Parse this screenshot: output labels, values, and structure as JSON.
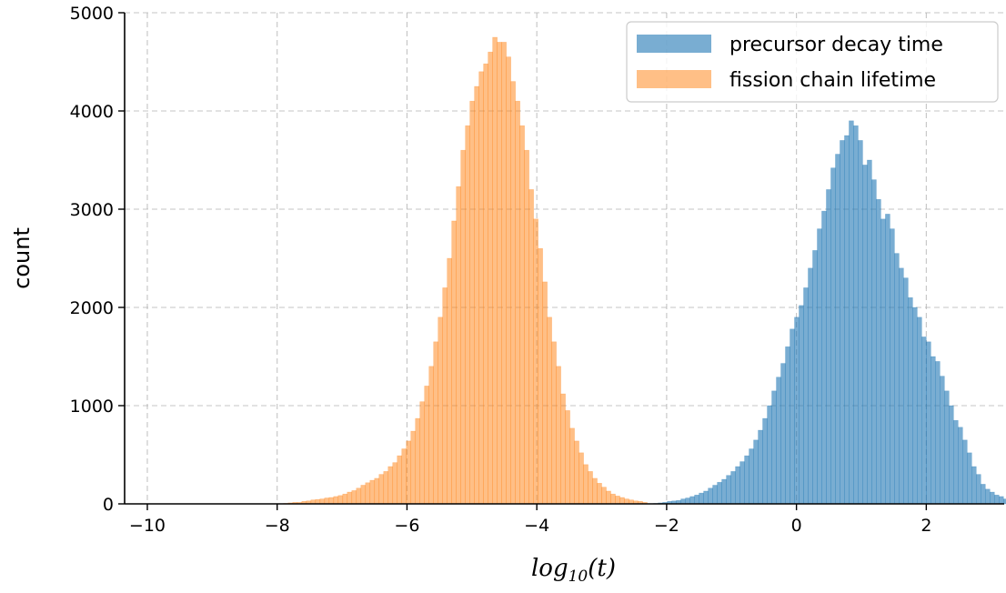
{
  "chart_data": {
    "type": "histogram",
    "title": "",
    "xlabel": {
      "base": "log",
      "sub": "10",
      "arg": "(t)"
    },
    "ylabel": "count",
    "xlim": [
      -10.35,
      3.2
    ],
    "ylim": [
      0,
      5000
    ],
    "xticks": [
      -10,
      -8,
      -6,
      -4,
      -2,
      0,
      2
    ],
    "xtick_labels": [
      "−10",
      "−8",
      "−6",
      "−4",
      "−2",
      "0",
      "2"
    ],
    "yticks": [
      0,
      1000,
      2000,
      3000,
      4000,
      5000
    ],
    "ytick_labels": [
      "0",
      "1000",
      "2000",
      "3000",
      "4000",
      "5000"
    ],
    "grid": true,
    "legend_position": "top-right",
    "series": [
      {
        "name": "precursor decay time",
        "color": "#1f77b4",
        "alpha": 0.6,
        "bin_start": -2.2,
        "bin_width": 0.07,
        "counts": [
          5,
          10,
          15,
          25,
          30,
          35,
          50,
          60,
          75,
          90,
          110,
          130,
          160,
          190,
          220,
          250,
          290,
          330,
          380,
          430,
          490,
          560,
          650,
          750,
          870,
          1000,
          1150,
          1290,
          1430,
          1600,
          1780,
          1900,
          2020,
          2200,
          2400,
          2580,
          2800,
          2980,
          3200,
          3420,
          3560,
          3700,
          3750,
          3900,
          3850,
          3700,
          3450,
          3500,
          3300,
          3100,
          2900,
          2950,
          2800,
          2550,
          2400,
          2300,
          2100,
          2000,
          1900,
          1700,
          1650,
          1500,
          1450,
          1300,
          1150,
          1000,
          850,
          780,
          650,
          520,
          380,
          300,
          200,
          150,
          120,
          90,
          75,
          50,
          40,
          25,
          15,
          5
        ]
      },
      {
        "name": "fission chain lifetime",
        "color": "#ff7f0e",
        "alpha": 0.5,
        "bin_start": -7.9,
        "bin_width": 0.07,
        "counts": [
          5,
          10,
          15,
          15,
          25,
          30,
          40,
          45,
          50,
          60,
          65,
          75,
          85,
          100,
          120,
          135,
          160,
          190,
          215,
          240,
          260,
          300,
          330,
          380,
          420,
          490,
          560,
          640,
          740,
          870,
          1040,
          1200,
          1400,
          1650,
          1900,
          2200,
          2500,
          2880,
          3230,
          3600,
          3850,
          4100,
          4250,
          4400,
          4480,
          4600,
          4750,
          4700,
          4700,
          4550,
          4300,
          4100,
          3850,
          3600,
          3200,
          2900,
          2600,
          2260,
          1900,
          1650,
          1400,
          1120,
          950,
          770,
          640,
          520,
          400,
          330,
          260,
          210,
          170,
          130,
          100,
          80,
          65,
          50,
          40,
          30,
          25,
          15
        ]
      }
    ]
  }
}
